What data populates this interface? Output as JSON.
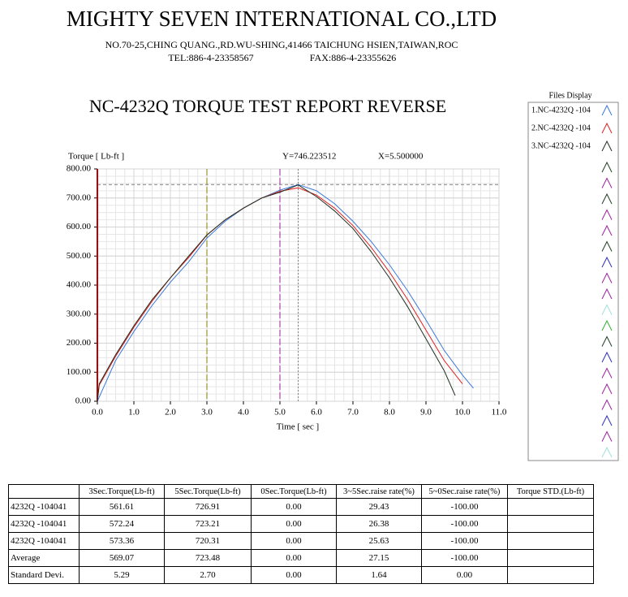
{
  "header": {
    "company": "MIGHTY SEVEN INTERNATIONAL CO.,LTD",
    "address": "NO.70-25,CHING QUANG.,RD.WU-SHING,41466 TAICHUNG HSIEN,TAIWAN,ROC",
    "tel": "TEL:886-4-23358567",
    "fax": "FAX:886-4-23355626"
  },
  "chart_data": {
    "type": "line",
    "title": "NC-4232Q TORQUE TEST REPORT REVERSE",
    "y_label": "Torque [ Lb-ft ]",
    "x_label": "Time [ sec ]",
    "cursor_y_text": "Y=746.223512",
    "cursor_x_text": "X=5.500000",
    "legend_title": "Files Display",
    "xlim": [
      0,
      11
    ],
    "ylim": [
      0,
      800
    ],
    "xticks": [
      {
        "value": 0,
        "label": "0.0"
      },
      {
        "value": 1,
        "label": "1.0"
      },
      {
        "value": 2,
        "label": "2.0"
      },
      {
        "value": 3,
        "label": "3.0"
      },
      {
        "value": 4,
        "label": "4.0"
      },
      {
        "value": 5,
        "label": "5.0"
      },
      {
        "value": 6,
        "label": "6.0"
      },
      {
        "value": 7,
        "label": "7.0"
      },
      {
        "value": 8,
        "label": "8.0"
      },
      {
        "value": 9,
        "label": "9.0"
      },
      {
        "value": 10,
        "label": "10.0"
      },
      {
        "value": 11,
        "label": "11.0"
      }
    ],
    "yticks": [
      {
        "value": 0,
        "label": "0.00"
      },
      {
        "value": 100,
        "label": "100.00"
      },
      {
        "value": 200,
        "label": "200.00"
      },
      {
        "value": 300,
        "label": "300.00"
      },
      {
        "value": 400,
        "label": "400.00"
      },
      {
        "value": 500,
        "label": "500.00"
      },
      {
        "value": 600,
        "label": "600.00"
      },
      {
        "value": 700,
        "label": "700.00"
      },
      {
        "value": 800,
        "label": "800.00"
      }
    ],
    "grid": true,
    "vlines": [
      {
        "x": 0,
        "color": "#c00000"
      },
      {
        "x": 3,
        "color": "#808000"
      },
      {
        "x": 5,
        "color": "#a020a0"
      },
      {
        "x": 5.5,
        "color": "#808080"
      }
    ],
    "hline": 746.223512,
    "series": [
      {
        "name": "1.NC-4232Q -104",
        "color": "#3a78d8",
        "x": [
          0,
          0.5,
          1,
          1.5,
          2,
          2.5,
          3,
          3.5,
          4,
          4.5,
          5,
          5.5,
          6,
          6.5,
          7,
          7.5,
          8,
          8.5,
          9,
          9.5,
          10,
          10.3
        ],
        "values": [
          0,
          140,
          240,
          330,
          410,
          480,
          562,
          620,
          665,
          700,
          727,
          746,
          725,
          680,
          620,
          550,
          470,
          380,
          280,
          175,
          90,
          45
        ]
      },
      {
        "name": "2.NC-4232Q -104",
        "color": "#e02020",
        "x": [
          0,
          0.05,
          0.5,
          1,
          1.5,
          2,
          2.5,
          3,
          3.5,
          4,
          4.5,
          5,
          5.5,
          6,
          6.5,
          7,
          7.5,
          8,
          8.5,
          9,
          9.5,
          10
        ],
        "values": [
          0,
          55,
          155,
          255,
          345,
          425,
          495,
          572,
          625,
          665,
          700,
          723,
          735,
          710,
          665,
          605,
          530,
          445,
          350,
          245,
          140,
          60
        ]
      },
      {
        "name": "3.NC-4232Q -104",
        "color": "#203020",
        "x": [
          0,
          0.05,
          0.5,
          1,
          1.5,
          2,
          2.5,
          3,
          3.5,
          4,
          4.5,
          5,
          5.5,
          6,
          6.5,
          7,
          7.5,
          8,
          8.5,
          9,
          9.5,
          9.8
        ],
        "values": [
          0,
          60,
          160,
          260,
          350,
          425,
          500,
          573,
          625,
          665,
          700,
          720,
          745,
          705,
          655,
          595,
          515,
          425,
          325,
          215,
          105,
          20
        ]
      }
    ]
  },
  "table": {
    "header": [
      "3Sec.Torque(Lb-ft)",
      "5Sec.Torque(Lb-ft)",
      "0Sec.Torque(Lb-ft)",
      "3~5Sec.raise rate(%)",
      "5~0Sec.raise rate(%)",
      "Torque STD.(Lb-ft)"
    ],
    "rows": [
      [
        "4232Q -104041",
        "561.61",
        "726.91",
        "0.00",
        "29.43",
        "-100.00"
      ],
      [
        "4232Q -104041",
        "572.24",
        "723.21",
        "0.00",
        "26.38",
        "-100.00"
      ],
      [
        "4232Q -104041",
        "573.36",
        "720.31",
        "0.00",
        "25.63",
        "-100.00"
      ],
      [
        "Average",
        "569.07",
        "723.48",
        "0.00",
        "27.15",
        "-100.00"
      ],
      [
        "Standard Devi.",
        "5.29",
        "2.70",
        "0.00",
        "1.64",
        "0.00"
      ]
    ]
  }
}
